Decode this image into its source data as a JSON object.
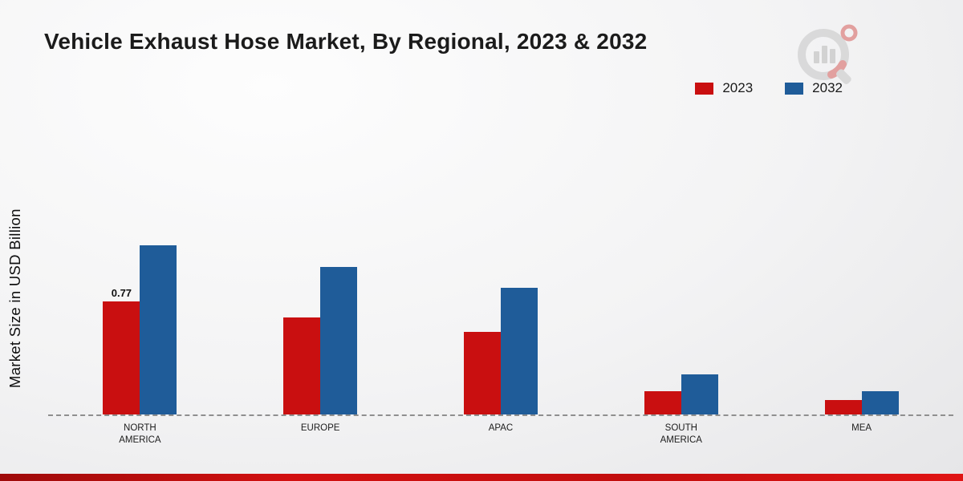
{
  "page": {
    "title": "Vehicle Exhaust Hose Market, By Regional, 2023 & 2032",
    "ylabel": "Market Size in USD Billion"
  },
  "colors": {
    "series_2023": "#c90f10",
    "series_2032": "#1f5c99",
    "footer_bar": "#cc0f0f",
    "baseline": "#8f8f8f"
  },
  "legend": {
    "items": [
      {
        "label": "2023",
        "color": "#c90f10"
      },
      {
        "label": "2032",
        "color": "#1f5c99"
      }
    ]
  },
  "chart_data": {
    "type": "bar",
    "title": "Vehicle Exhaust Hose Market, By Regional, 2023 & 2032",
    "xlabel": "",
    "ylabel": "Market Size in USD Billion",
    "categories": [
      "NORTH AMERICA",
      "EUROPE",
      "APAC",
      "SOUTH AMERICA",
      "MEA"
    ],
    "series": [
      {
        "name": "2023",
        "color": "#c90f10",
        "values": [
          0.77,
          0.66,
          0.56,
          0.16,
          0.1
        ]
      },
      {
        "name": "2032",
        "color": "#1f5c99",
        "values": [
          1.15,
          1.0,
          0.86,
          0.27,
          0.16
        ]
      }
    ],
    "data_labels": [
      {
        "series": "2023",
        "category": "NORTH AMERICA",
        "text": "0.77"
      }
    ],
    "ylim": [
      0,
      1.28
    ],
    "grid": false,
    "legend_position": "top-right",
    "baseline_style": "dashed"
  }
}
